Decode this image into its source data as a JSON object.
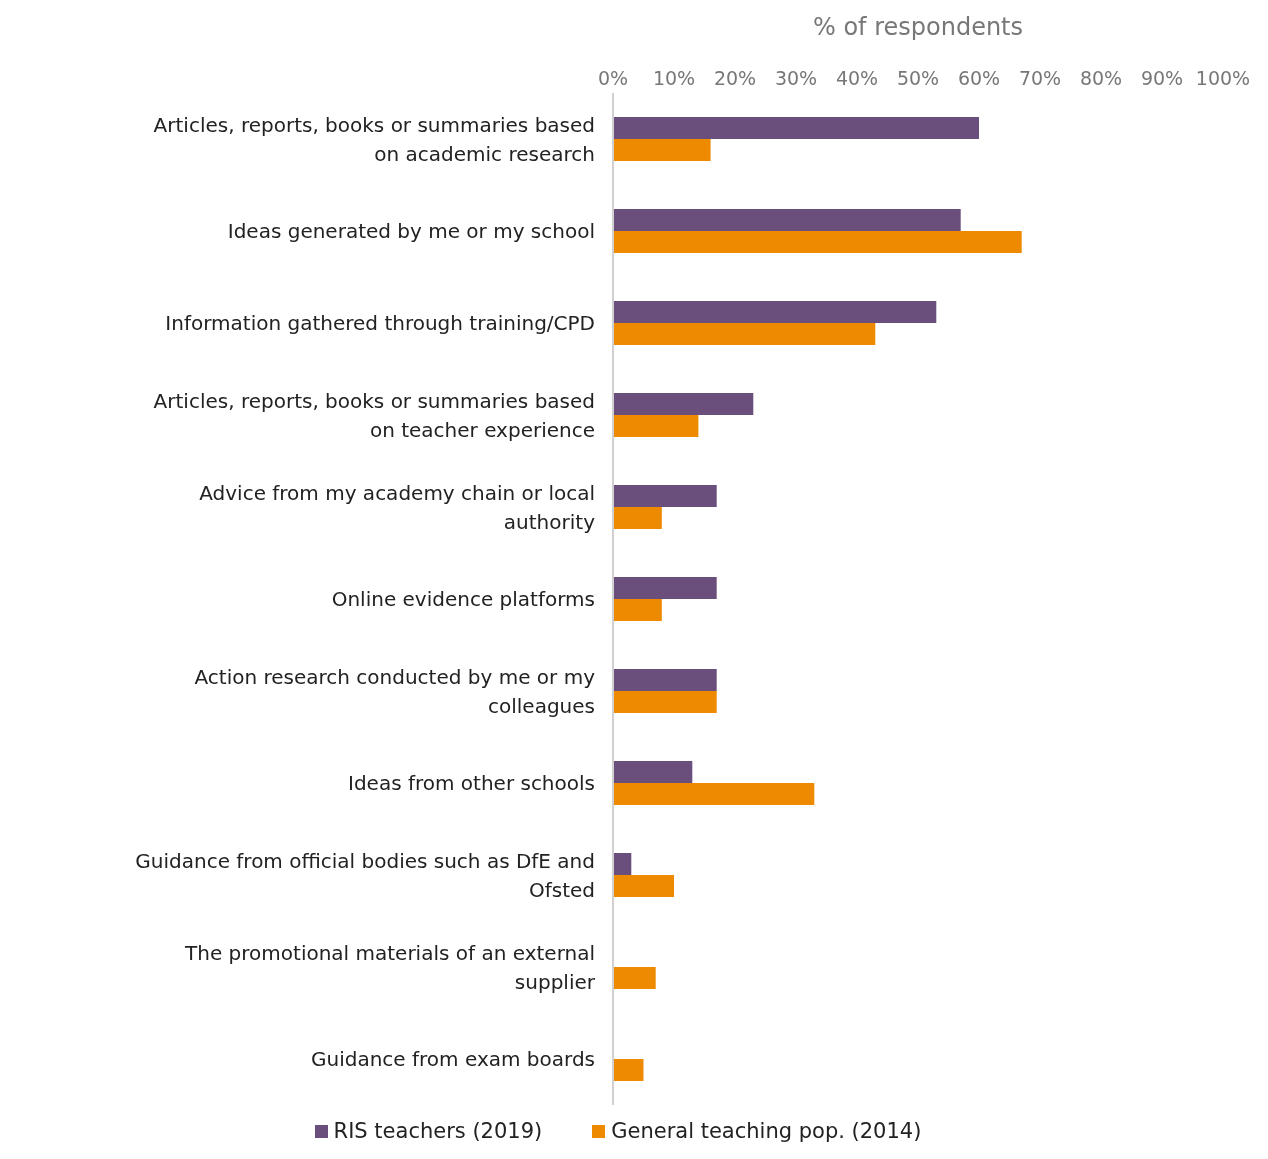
{
  "chart_data": {
    "type": "bar",
    "orientation": "horizontal",
    "xlabel": "% of respondents",
    "categories": [
      "Articles, reports, books or summaries based on academic research",
      "Ideas generated by me or my school",
      "Information gathered through training/CPD",
      "Articles, reports, books or summaries based on teacher experience",
      "Advice from my academy chain or local authority",
      "Online evidence platforms",
      "Action research conducted by me or my colleagues",
      "Ideas from other schools",
      "Guidance from official bodies such as DfE and Ofsted",
      "The promotional materials of an external supplier",
      "Guidance from exam boards"
    ],
    "series": [
      {
        "name": "RIS teachers (2019)",
        "color": "#6a4e7c",
        "values": [
          60,
          57,
          53,
          23,
          17,
          17,
          17,
          13,
          3,
          0,
          0
        ]
      },
      {
        "name": "General teaching pop. (2014)",
        "color": "#ee8a00",
        "values": [
          16,
          67,
          43,
          14,
          8,
          8,
          17,
          33,
          10,
          7,
          5
        ]
      }
    ],
    "xlim": [
      0,
      100
    ],
    "xticks": [
      {
        "value": 0,
        "label": "0%"
      },
      {
        "value": 10,
        "label": "10%"
      },
      {
        "value": 20,
        "label": "20%"
      },
      {
        "value": 30,
        "label": "30%"
      },
      {
        "value": 40,
        "label": "40%"
      },
      {
        "value": 50,
        "label": "50%"
      },
      {
        "value": 60,
        "label": "60%"
      },
      {
        "value": 70,
        "label": "70%"
      },
      {
        "value": 80,
        "label": "80%"
      },
      {
        "value": 90,
        "label": "90%"
      },
      {
        "value": 100,
        "label": "100%"
      }
    ],
    "grid": false,
    "legend": "bottom"
  }
}
